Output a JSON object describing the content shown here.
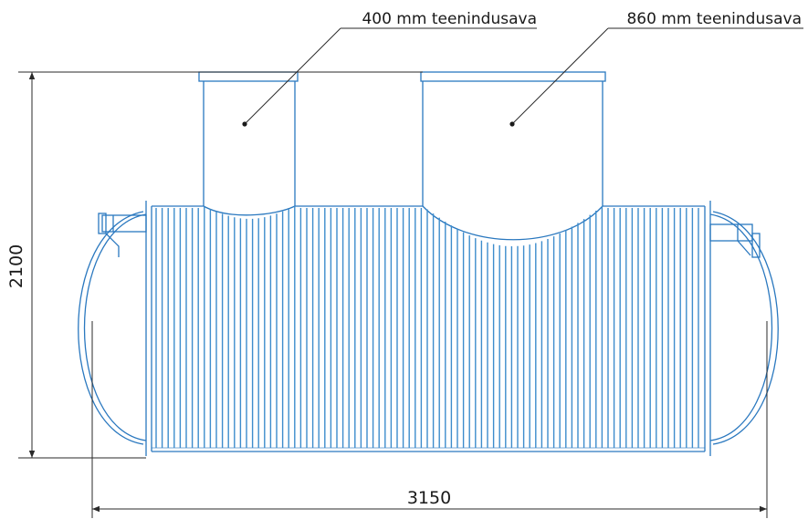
{
  "drawing": {
    "callout_left": "400 mm teenindusava",
    "callout_right": "860 mm teenindusava",
    "dim_height": "2100",
    "dim_width": "3150"
  },
  "colors": {
    "tank_line": "#2a78bf",
    "rib_line": "#3d8ccc",
    "dimension_line": "#2a2a2a"
  }
}
